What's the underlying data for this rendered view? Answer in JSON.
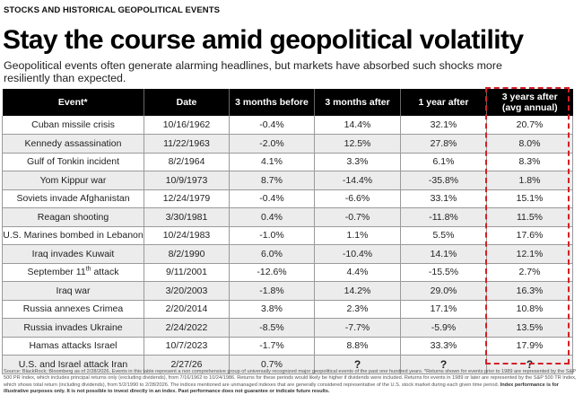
{
  "kicker": "STOCKS AND HISTORICAL GEOPOLITICAL EVENTS",
  "title": "Stay the course amid geopolitical volatility",
  "subtitle": "Geopolitical events often generate alarming headlines, but markets have absorbed such shocks more resiliently than expected.",
  "table": {
    "headers": {
      "event": "Event*",
      "date": "Date",
      "before3m": "3 months before",
      "after3m": "3 months after",
      "after1y": "1 year after",
      "after3y_line1": "3 years after",
      "after3y_line2": "(avg annual)"
    },
    "rows": [
      {
        "event": "Cuban missile crisis",
        "date": "10/16/1962",
        "before3m": "-0.4%",
        "after3m": "14.4%",
        "after1y": "32.1%",
        "after3y": "20.7%"
      },
      {
        "event": "Kennedy assassination",
        "date": "11/22/1963",
        "before3m": "-2.0%",
        "after3m": "12.5%",
        "after1y": "27.8%",
        "after3y": "8.0%"
      },
      {
        "event": "Gulf of Tonkin incident",
        "date": "8/2/1964",
        "before3m": "4.1%",
        "after3m": "3.3%",
        "after1y": "6.1%",
        "after3y": "8.3%"
      },
      {
        "event": "Yom Kippur war",
        "date": "10/9/1973",
        "before3m": "8.7%",
        "after3m": "-14.4%",
        "after1y": "-35.8%",
        "after3y": "1.8%"
      },
      {
        "event": "Soviets invade Afghanistan",
        "date": "12/24/1979",
        "before3m": "-0.4%",
        "after3m": "-6.6%",
        "after1y": "33.1%",
        "after3y": "15.1%"
      },
      {
        "event": "Reagan shooting",
        "date": "3/30/1981",
        "before3m": "0.4%",
        "after3m": "-0.7%",
        "after1y": "-11.8%",
        "after3y": "11.5%"
      },
      {
        "event": "U.S. Marines bombed in Lebanon",
        "date": "10/24/1983",
        "before3m": "-1.0%",
        "after3m": "1.1%",
        "after1y": "5.5%",
        "after3y": "17.6%"
      },
      {
        "event": "Iraq invades Kuwait",
        "date": "8/2/1990",
        "before3m": "6.0%",
        "after3m": "-10.4%",
        "after1y": "14.1%",
        "after3y": "12.1%"
      },
      {
        "event_pre": "September 11",
        "event_sup": "th",
        "event_post": " attack",
        "date": "9/11/2001",
        "before3m": "-12.6%",
        "after3m": "4.4%",
        "after1y": "-15.5%",
        "after3y": "2.7%"
      },
      {
        "event": "Iraq war",
        "date": "3/20/2003",
        "before3m": "-1.8%",
        "after3m": "14.2%",
        "after1y": "29.0%",
        "after3y": "16.3%"
      },
      {
        "event": "Russia annexes Crimea",
        "date": "2/20/2014",
        "before3m": "3.8%",
        "after3m": "2.3%",
        "after1y": "17.1%",
        "after3y": "10.8%"
      },
      {
        "event": "Russia invades Ukraine",
        "date": "2/24/2022",
        "before3m": "-8.5%",
        "after3m": "-7.7%",
        "after1y": "-5.9%",
        "after3y": "13.5%"
      },
      {
        "event": "Hamas attacks Israel",
        "date": "10/7/2023",
        "before3m": "-1.7%",
        "after3m": "8.8%",
        "after1y": "33.3%",
        "after3y": "17.9%"
      },
      {
        "event": "U.S. and Israel attack Iran",
        "date": "2/27/26",
        "before3m": "0.7%",
        "after3m": "?",
        "after1y": "?",
        "after3y": "?"
      }
    ]
  },
  "footnote": {
    "text": "Source: BlackRock; Bloomberg as of 2/28/2026. Events in this table represent a non comprehensive group of universally recognized major geopolitical events of the past one hundred years. *Returns shown for events prior to 1989 are represented by the S&P 500 PR Index, which includes principal returns only (excluding dividends), from 7/16/1962 to 10/24/1986. Returns for these periods would likely be higher if dividends were included. Returns for events in 1989 or later are represented by the S&P 500 TR Index, which shows total return (including dividends), from 5/2/1990 to 2/28/2026. The indices mentioned are unmanaged indexes that are generally considered representative of the U.S. stock market during each given time period. ",
    "bold": "Index performance is for illustrative purposes only. It is not possible to invest directly in an index. Past performance does not guarantee or indicate future results."
  },
  "colors": {
    "header_bg": "#000000",
    "alt_row": "#ececec",
    "highlight": "#d51f26"
  }
}
